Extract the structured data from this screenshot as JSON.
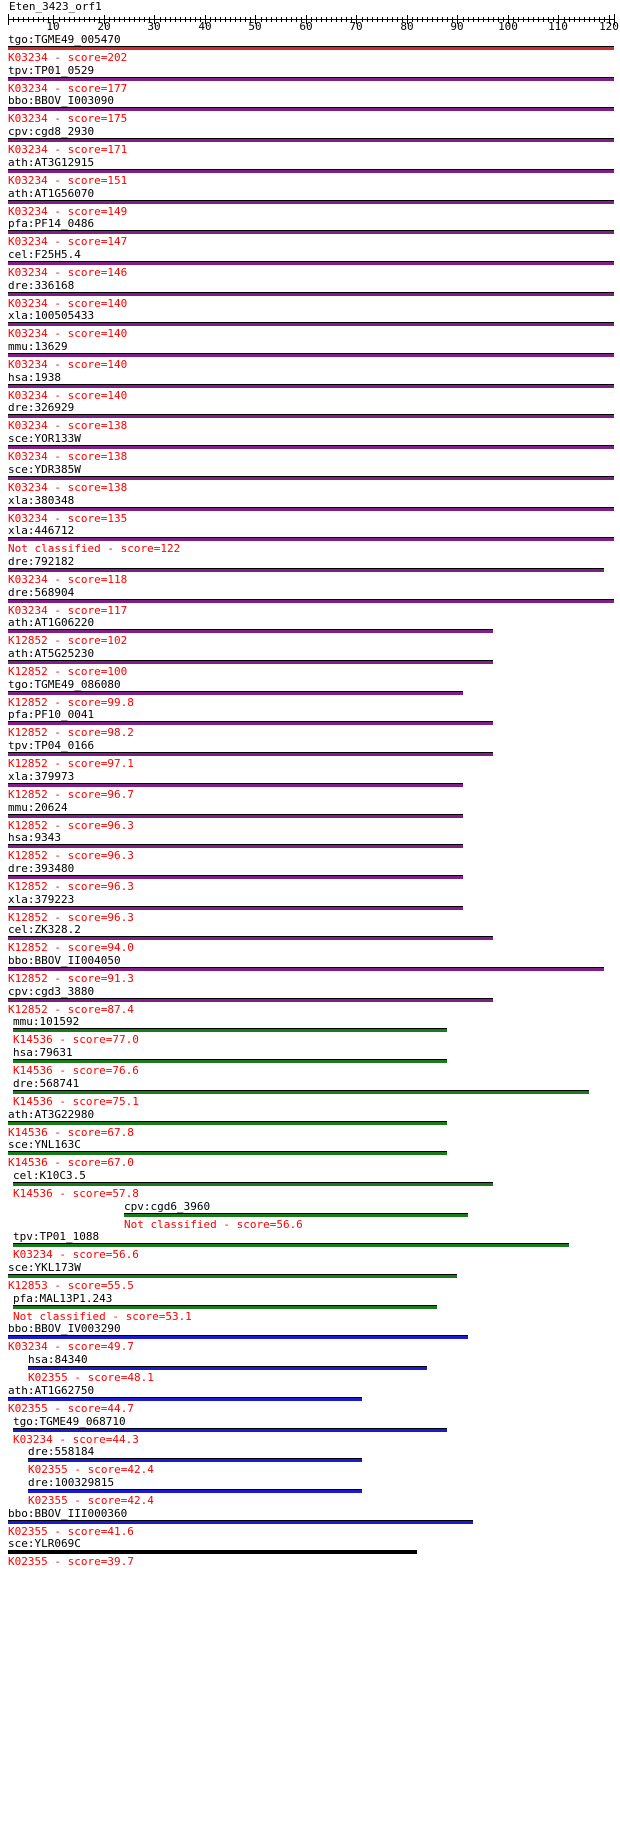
{
  "query": "Eten_3423_orf1",
  "axis": {
    "min": 1,
    "max": 121,
    "ticks": [
      10,
      20,
      30,
      40,
      50,
      60,
      70,
      80,
      90,
      100,
      110,
      120
    ]
  },
  "colors": {
    "red": "#d42a2a",
    "purple": "#7f1f87",
    "green": "#1b7a1b",
    "blue": "#1a1ad4",
    "black": "#000000"
  },
  "hits": [
    {
      "name": "tgo:TGME49_005470",
      "desc": "K03234 - score=202",
      "start": 1,
      "end": 121,
      "color": "red"
    },
    {
      "name": "tpv:TP01_0529",
      "desc": "K03234 - score=177",
      "start": 1,
      "end": 121,
      "color": "purple"
    },
    {
      "name": "bbo:BBOV_I003090",
      "desc": "K03234 - score=175",
      "start": 1,
      "end": 121,
      "color": "purple"
    },
    {
      "name": "cpv:cgd8_2930",
      "desc": "K03234 - score=171",
      "start": 1,
      "end": 121,
      "color": "purple"
    },
    {
      "name": "ath:AT3G12915",
      "desc": "K03234 - score=151",
      "start": 1,
      "end": 121,
      "color": "purple"
    },
    {
      "name": "ath:AT1G56070",
      "desc": "K03234 - score=149",
      "start": 1,
      "end": 121,
      "color": "purple"
    },
    {
      "name": "pfa:PF14_0486",
      "desc": "K03234 - score=147",
      "start": 1,
      "end": 121,
      "color": "purple"
    },
    {
      "name": "cel:F25H5.4",
      "desc": "K03234 - score=146",
      "start": 1,
      "end": 121,
      "color": "purple"
    },
    {
      "name": "dre:336168",
      "desc": "K03234 - score=140",
      "start": 1,
      "end": 121,
      "color": "purple"
    },
    {
      "name": "xla:100505433",
      "desc": "K03234 - score=140",
      "start": 1,
      "end": 121,
      "color": "purple"
    },
    {
      "name": "mmu:13629",
      "desc": "K03234 - score=140",
      "start": 1,
      "end": 121,
      "color": "purple"
    },
    {
      "name": "hsa:1938",
      "desc": "K03234 - score=140",
      "start": 1,
      "end": 121,
      "color": "purple"
    },
    {
      "name": "dre:326929",
      "desc": "K03234 - score=138",
      "start": 1,
      "end": 121,
      "color": "purple"
    },
    {
      "name": "sce:YOR133W",
      "desc": "K03234 - score=138",
      "start": 1,
      "end": 121,
      "color": "purple"
    },
    {
      "name": "sce:YDR385W",
      "desc": "K03234 - score=138",
      "start": 1,
      "end": 121,
      "color": "purple"
    },
    {
      "name": "xla:380348",
      "desc": "K03234 - score=135",
      "start": 1,
      "end": 121,
      "color": "purple"
    },
    {
      "name": "xla:446712",
      "desc": "Not classified - score=122",
      "start": 1,
      "end": 121,
      "color": "purple"
    },
    {
      "name": "dre:792182",
      "desc": "K03234 - score=118",
      "start": 1,
      "end": 119,
      "color": "purple"
    },
    {
      "name": "dre:568904",
      "desc": "K03234 - score=117",
      "start": 1,
      "end": 121,
      "color": "purple"
    },
    {
      "name": "ath:AT1G06220",
      "desc": "K12852 - score=102",
      "start": 1,
      "end": 97,
      "color": "purple"
    },
    {
      "name": "ath:AT5G25230",
      "desc": "K12852 - score=100",
      "start": 1,
      "end": 97,
      "color": "purple"
    },
    {
      "name": "tgo:TGME49_086080",
      "desc": "K12852 - score=99.8",
      "start": 1,
      "end": 91,
      "color": "purple"
    },
    {
      "name": "pfa:PF10_0041",
      "desc": "K12852 - score=98.2",
      "start": 1,
      "end": 97,
      "color": "purple"
    },
    {
      "name": "tpv:TP04_0166",
      "desc": "K12852 - score=97.1",
      "start": 1,
      "end": 97,
      "color": "purple"
    },
    {
      "name": "xla:379973",
      "desc": "K12852 - score=96.7",
      "start": 1,
      "end": 91,
      "color": "purple"
    },
    {
      "name": "mmu:20624",
      "desc": "K12852 - score=96.3",
      "start": 1,
      "end": 91,
      "color": "purple"
    },
    {
      "name": "hsa:9343",
      "desc": "K12852 - score=96.3",
      "start": 1,
      "end": 91,
      "color": "purple"
    },
    {
      "name": "dre:393480",
      "desc": "K12852 - score=96.3",
      "start": 1,
      "end": 91,
      "color": "purple"
    },
    {
      "name": "xla:379223",
      "desc": "K12852 - score=96.3",
      "start": 1,
      "end": 91,
      "color": "purple"
    },
    {
      "name": "cel:ZK328.2",
      "desc": "K12852 - score=94.0",
      "start": 1,
      "end": 97,
      "color": "purple"
    },
    {
      "name": "bbo:BBOV_II004050",
      "desc": "K12852 - score=91.3",
      "start": 1,
      "end": 119,
      "color": "purple"
    },
    {
      "name": "cpv:cgd3_3880",
      "desc": "K12852 - score=87.4",
      "start": 1,
      "end": 97,
      "color": "purple"
    },
    {
      "name": "mmu:101592",
      "desc": "K14536 - score=77.0",
      "start": 2,
      "end": 88,
      "color": "green"
    },
    {
      "name": "hsa:79631",
      "desc": "K14536 - score=76.6",
      "start": 2,
      "end": 88,
      "color": "green"
    },
    {
      "name": "dre:568741",
      "desc": "K14536 - score=75.1",
      "start": 2,
      "end": 116,
      "color": "green"
    },
    {
      "name": "ath:AT3G22980",
      "desc": "K14536 - score=67.8",
      "start": 1,
      "end": 88,
      "color": "green"
    },
    {
      "name": "sce:YNL163C",
      "desc": "K14536 - score=67.0",
      "start": 1,
      "end": 88,
      "color": "green"
    },
    {
      "name": "cel:K10C3.5",
      "desc": "K14536 - score=57.8",
      "start": 2,
      "end": 97,
      "color": "green"
    },
    {
      "name": "cpv:cgd6_3960",
      "desc": "Not classified - score=56.6",
      "start": 24,
      "end": 92,
      "color": "green"
    },
    {
      "name": "tpv:TP01_1088",
      "desc": "K03234 - score=56.6",
      "start": 2,
      "end": 112,
      "color": "green"
    },
    {
      "name": "sce:YKL173W",
      "desc": "K12853 - score=55.5",
      "start": 1,
      "end": 90,
      "color": "green"
    },
    {
      "name": "pfa:MAL13P1.243",
      "desc": "Not classified - score=53.1",
      "start": 2,
      "end": 86,
      "color": "green"
    },
    {
      "name": "bbo:BBOV_IV003290",
      "desc": "K03234 - score=49.7",
      "start": 1,
      "end": 92,
      "color": "blue"
    },
    {
      "name": "hsa:84340",
      "desc": "K02355 - score=48.1",
      "start": 5,
      "end": 84,
      "color": "blue"
    },
    {
      "name": "ath:AT1G62750",
      "desc": "K02355 - score=44.7",
      "start": 1,
      "end": 71,
      "color": "blue"
    },
    {
      "name": "tgo:TGME49_068710",
      "desc": "K03234 - score=44.3",
      "start": 2,
      "end": 88,
      "color": "blue"
    },
    {
      "name": "dre:558184",
      "desc": "K02355 - score=42.4",
      "start": 5,
      "end": 71,
      "color": "blue"
    },
    {
      "name": "dre:100329815",
      "desc": "K02355 - score=42.4",
      "start": 5,
      "end": 71,
      "color": "blue"
    },
    {
      "name": "bbo:BBOV_III000360",
      "desc": "K02355 - score=41.6",
      "start": 1,
      "end": 93,
      "color": "blue"
    },
    {
      "name": "sce:YLR069C",
      "desc": "K02355 - score=39.7",
      "start": 1,
      "end": 82,
      "color": "black"
    }
  ]
}
